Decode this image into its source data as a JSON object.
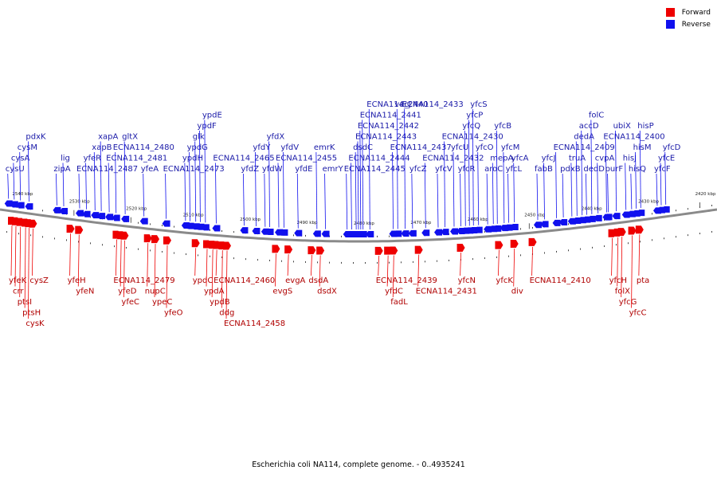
{
  "legend": {
    "forward": {
      "label": "Forward",
      "color": "#ee0000"
    },
    "reverse": {
      "label": "Reverse",
      "color": "#1010ee"
    }
  },
  "caption": "Escherichia coli NA114, complete genome. - 0..4935241",
  "axis": {
    "start_kbp": 2543,
    "end_kbp": 2417,
    "ticks": [
      {
        "label": "2540 kbp",
        "kbp": 2540
      },
      {
        "label": "2530 kbp",
        "kbp": 2530
      },
      {
        "label": "2520 kbp",
        "kbp": 2520
      },
      {
        "label": "2510 kbp",
        "kbp": 2510
      },
      {
        "label": "2500 kbp",
        "kbp": 2500
      },
      {
        "label": "2490 kbp",
        "kbp": 2490
      },
      {
        "label": "2480 kbp",
        "kbp": 2480
      },
      {
        "label": "2470 kbp",
        "kbp": 2470
      },
      {
        "label": "2460 kbp",
        "kbp": 2460
      },
      {
        "label": "2450 kbp",
        "kbp": 2450
      },
      {
        "label": "2440 kbp",
        "kbp": 2440
      },
      {
        "label": "2430 kbp",
        "kbp": 2430
      },
      {
        "label": "2420 kbp",
        "kbp": 2420
      }
    ]
  },
  "reverse_genes": [
    {
      "name": "cysU",
      "kbp": 2541.5
    },
    {
      "name": "cysA",
      "kbp": 2540.5
    },
    {
      "name": "cysM",
      "kbp": 2539.4
    },
    {
      "name": "pdxK",
      "kbp": 2537.9
    },
    {
      "name": "zipA",
      "kbp": 2533.0
    },
    {
      "name": "lig",
      "kbp": 2531.8
    },
    {
      "name": "ECNA114_2487",
      "kbp": 2529.0
    },
    {
      "name": "yfeR",
      "kbp": 2527.8
    },
    {
      "name": "xapB",
      "kbp": 2526.3
    },
    {
      "name": "xapA",
      "kbp": 2525.2
    },
    {
      "name": "ECNA114_2481",
      "kbp": 2523.8
    },
    {
      "name": "ECNA114_2480",
      "kbp": 2522.6
    },
    {
      "name": "gltX",
      "kbp": 2521.0
    },
    {
      "name": "yfeA",
      "kbp": 2517.7
    },
    {
      "name": "ECNA114_2473",
      "kbp": 2513.8
    },
    {
      "name": "ypdH",
      "kbp": 2510.4
    },
    {
      "name": "ypdG",
      "kbp": 2509.6
    },
    {
      "name": "glk",
      "kbp": 2508.6
    },
    {
      "name": "ypdF",
      "kbp": 2507.8
    },
    {
      "name": "ypdE",
      "kbp": 2506.9
    },
    {
      "name": "ECNA114_2465",
      "kbp": 2505.0
    },
    {
      "name": "yfdZ",
      "kbp": 2500.1
    },
    {
      "name": "yfdY",
      "kbp": 2498.0
    },
    {
      "name": "yfdW",
      "kbp": 2496.4
    },
    {
      "name": "yfdX",
      "kbp": 2495.6
    },
    {
      "name": "ECNA114_2455",
      "kbp": 2494.0
    },
    {
      "name": "yfdV",
      "kbp": 2493.1
    },
    {
      "name": "yfdE",
      "kbp": 2490.6
    },
    {
      "name": "emrK",
      "kbp": 2487.3
    },
    {
      "name": "emrY",
      "kbp": 2485.8
    },
    {
      "name": "ECNA114_2445",
      "kbp": 2482.0
    },
    {
      "name": "ECNA114_2444",
      "kbp": 2481.2
    },
    {
      "name": "dsdC",
      "kbp": 2480.4
    },
    {
      "name": "ECNA114_2443",
      "kbp": 2480.0
    },
    {
      "name": "ECNA114_2442",
      "kbp": 2479.6
    },
    {
      "name": "ECNA114_2441",
      "kbp": 2479.2
    },
    {
      "name": "ECNA114_2440",
      "kbp": 2478.0
    },
    {
      "name": "ECNA114_2437",
      "kbp": 2473.9
    },
    {
      "name": "vacJ",
      "kbp": 2473.1
    },
    {
      "name": "ECNA114_2433",
      "kbp": 2471.8
    },
    {
      "name": "yfcZ",
      "kbp": 2470.5
    },
    {
      "name": "ECNA114_2432",
      "kbp": 2468.2
    },
    {
      "name": "yfcV",
      "kbp": 2466.0
    },
    {
      "name": "ECNA114_2430",
      "kbp": 2464.8
    },
    {
      "name": "yfcU",
      "kbp": 2463.2
    },
    {
      "name": "yfcR",
      "kbp": 2462.0
    },
    {
      "name": "yfcQ",
      "kbp": 2461.2
    },
    {
      "name": "yfcP",
      "kbp": 2460.5
    },
    {
      "name": "yfcS",
      "kbp": 2459.8
    },
    {
      "name": "yfcO",
      "kbp": 2458.9
    },
    {
      "name": "aroC",
      "kbp": 2457.3
    },
    {
      "name": "mepA",
      "kbp": 2456.3
    },
    {
      "name": "yfcB",
      "kbp": 2455.6
    },
    {
      "name": "yfcM",
      "kbp": 2454.4
    },
    {
      "name": "yfcL",
      "kbp": 2453.6
    },
    {
      "name": "yfcA",
      "kbp": 2452.6
    },
    {
      "name": "fabB",
      "kbp": 2448.5
    },
    {
      "name": "yfcJ",
      "kbp": 2447.3
    },
    {
      "name": "ECNA114_2409",
      "kbp": 2445.2
    },
    {
      "name": "pdxB",
      "kbp": 2444.0
    },
    {
      "name": "truA",
      "kbp": 2442.5
    },
    {
      "name": "dedA",
      "kbp": 2441.6
    },
    {
      "name": "accD",
      "kbp": 2440.7
    },
    {
      "name": "dedD",
      "kbp": 2439.9
    },
    {
      "name": "folC",
      "kbp": 2439.0
    },
    {
      "name": "cvpA",
      "kbp": 2437.9
    },
    {
      "name": "ECNA114_2400",
      "kbp": 2436.4
    },
    {
      "name": "purF",
      "kbp": 2436.1
    },
    {
      "name": "ubiX",
      "kbp": 2434.7
    },
    {
      "name": "hisJ",
      "kbp": 2433.0
    },
    {
      "name": "hisQ",
      "kbp": 2432.0
    },
    {
      "name": "hisM",
      "kbp": 2431.2
    },
    {
      "name": "hisP",
      "kbp": 2430.4
    },
    {
      "name": "yfcF",
      "kbp": 2427.5
    },
    {
      "name": "yfcE",
      "kbp": 2426.8
    },
    {
      "name": "yfcD",
      "kbp": 2426.0
    }
  ],
  "forward_genes": [
    {
      "name": "yfeK",
      "kbp": 2540.9
    },
    {
      "name": "crr",
      "kbp": 2540.2
    },
    {
      "name": "ptsI",
      "kbp": 2539.4
    },
    {
      "name": "ptsH",
      "kbp": 2538.5
    },
    {
      "name": "cysK",
      "kbp": 2537.9
    },
    {
      "name": "cysZ",
      "kbp": 2537.2
    },
    {
      "name": "yfeH",
      "kbp": 2530.6
    },
    {
      "name": "yfeN",
      "kbp": 2529.1
    },
    {
      "name": "ECNA114_2479",
      "kbp": 2522.5
    },
    {
      "name": "yfeD",
      "kbp": 2521.7
    },
    {
      "name": "yfeC",
      "kbp": 2521.1
    },
    {
      "name": "nupC",
      "kbp": 2517.0
    },
    {
      "name": "ypeC",
      "kbp": 2515.7
    },
    {
      "name": "yfeO",
      "kbp": 2513.6
    },
    {
      "name": "ypdC",
      "kbp": 2508.6
    },
    {
      "name": "ypdA",
      "kbp": 2506.6
    },
    {
      "name": "ypdB",
      "kbp": 2505.6
    },
    {
      "name": "ECNA114_2460",
      "kbp": 2504.9
    },
    {
      "name": "ddg",
      "kbp": 2503.9
    },
    {
      "name": "ECNA114_2458",
      "kbp": 2503.1
    },
    {
      "name": "evgS",
      "kbp": 2494.5
    },
    {
      "name": "evgA",
      "kbp": 2492.3
    },
    {
      "name": "dsdA",
      "kbp": 2488.2
    },
    {
      "name": "dsdX",
      "kbp": 2486.7
    },
    {
      "name": "ECNA114_2439",
      "kbp": 2476.4
    },
    {
      "name": "yfdC",
      "kbp": 2474.8
    },
    {
      "name": "fadL",
      "kbp": 2473.8
    },
    {
      "name": "ECNA114_2431",
      "kbp": 2469.4
    },
    {
      "name": "yfcN",
      "kbp": 2462.0
    },
    {
      "name": "yfcK",
      "kbp": 2455.3
    },
    {
      "name": "div",
      "kbp": 2452.6
    },
    {
      "name": "ECNA114_2410",
      "kbp": 2449.4
    },
    {
      "name": "yfcH",
      "kbp": 2435.4
    },
    {
      "name": "folX",
      "kbp": 2434.4
    },
    {
      "name": "yfcG",
      "kbp": 2433.7
    },
    {
      "name": "yfcC",
      "kbp": 2431.9
    },
    {
      "name": "pta",
      "kbp": 2430.6
    }
  ]
}
